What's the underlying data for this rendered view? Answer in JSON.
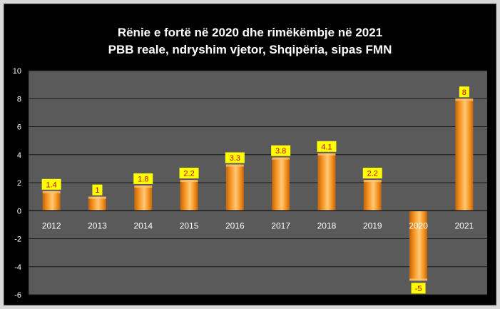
{
  "chart_data": {
    "type": "bar",
    "title": "Rënie e fortë në 2020 dhe rimëkëmbje në 2021",
    "subtitle": "PBB reale, ndryshim vjetor, Shqipëria, sipas FMN",
    "categories": [
      "2012",
      "2013",
      "2014",
      "2015",
      "2016",
      "2017",
      "2018",
      "2019",
      "2020",
      "2021"
    ],
    "values": [
      1.4,
      1,
      1.8,
      2.2,
      3.3,
      3.8,
      4.1,
      2.2,
      -5,
      8
    ],
    "data_labels": [
      "1.4",
      "1",
      "1.8",
      "2.2",
      "3.3",
      "3.8",
      "4.1",
      "2.2",
      "-5",
      "8"
    ],
    "yticks": [
      "-6",
      "-4",
      "-2",
      "0",
      "2",
      "4",
      "6",
      "8",
      "10"
    ],
    "ylim": [
      -6,
      10
    ],
    "grid": true,
    "legend": "none",
    "colors": {
      "background": "#000000",
      "plot_area": "#5a5a5a",
      "gridline": "#1a1a1a",
      "bar_light": "#ffc977",
      "bar_mid": "#f5921e",
      "bar_dark": "#c2650e",
      "label_bg": "#ffff00",
      "label_text": "#cc0000",
      "axis_text": "#ffffff"
    }
  }
}
